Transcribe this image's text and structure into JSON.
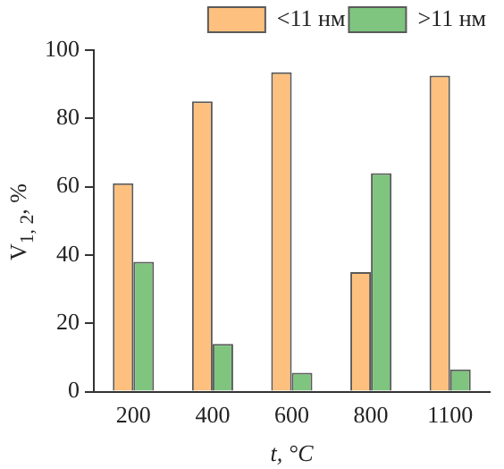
{
  "chart_data": {
    "type": "bar",
    "xlabel": "t, °C",
    "ylabel": "V$_{1, 2}$, %",
    "categories": [
      "200",
      "400",
      "600",
      "800",
      "1100"
    ],
    "series": [
      {
        "name": "<11 нм",
        "color": "#fdc07e",
        "values": [
          61,
          85,
          93.5,
          35,
          92.5
        ]
      },
      {
        "name": ">11 нм",
        "color": "#7fc47f",
        "values": [
          38,
          14,
          5.5,
          64,
          6.5
        ]
      }
    ],
    "ylim": [
      0,
      100
    ],
    "yticks": [
      0,
      20,
      40,
      60,
      80,
      100
    ],
    "grid": false,
    "legend": "top right"
  }
}
